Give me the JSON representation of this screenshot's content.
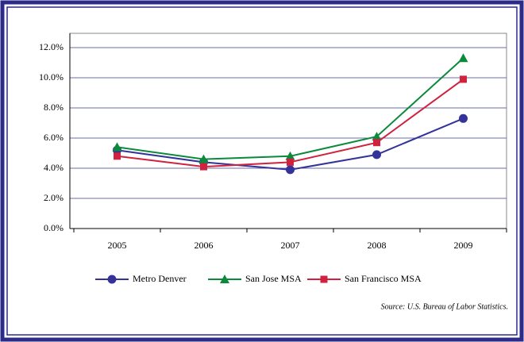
{
  "chart_data": {
    "type": "line",
    "categories": [
      "2005",
      "2006",
      "2007",
      "2008",
      "2009"
    ],
    "series": [
      {
        "name": "Metro Denver",
        "color": "#33339a",
        "marker": "circle",
        "values": [
          5.2,
          4.4,
          3.9,
          4.9,
          7.3
        ]
      },
      {
        "name": "San Jose MSA",
        "color": "#0a8a3a",
        "marker": "triangle",
        "values": [
          5.4,
          4.6,
          4.8,
          6.1,
          11.3
        ]
      },
      {
        "name": "San Francisco  MSA",
        "color": "#d0213f",
        "marker": "square",
        "values": [
          4.8,
          4.1,
          4.4,
          5.7,
          9.9
        ]
      }
    ],
    "ylim": [
      0,
      12
    ],
    "yticks": [
      {
        "value": 0,
        "label": "0.0%"
      },
      {
        "value": 2,
        "label": "2.0%"
      },
      {
        "value": 4,
        "label": "4.0%"
      },
      {
        "value": 6,
        "label": "6.0%"
      },
      {
        "value": 8,
        "label": "8.0%"
      },
      {
        "value": 10,
        "label": "10.0%"
      },
      {
        "value": 12,
        "label": "12.0%"
      }
    ],
    "grid": true,
    "legend": "bottom",
    "source": "Source: U.S. Bureau of Labor Statistics."
  }
}
